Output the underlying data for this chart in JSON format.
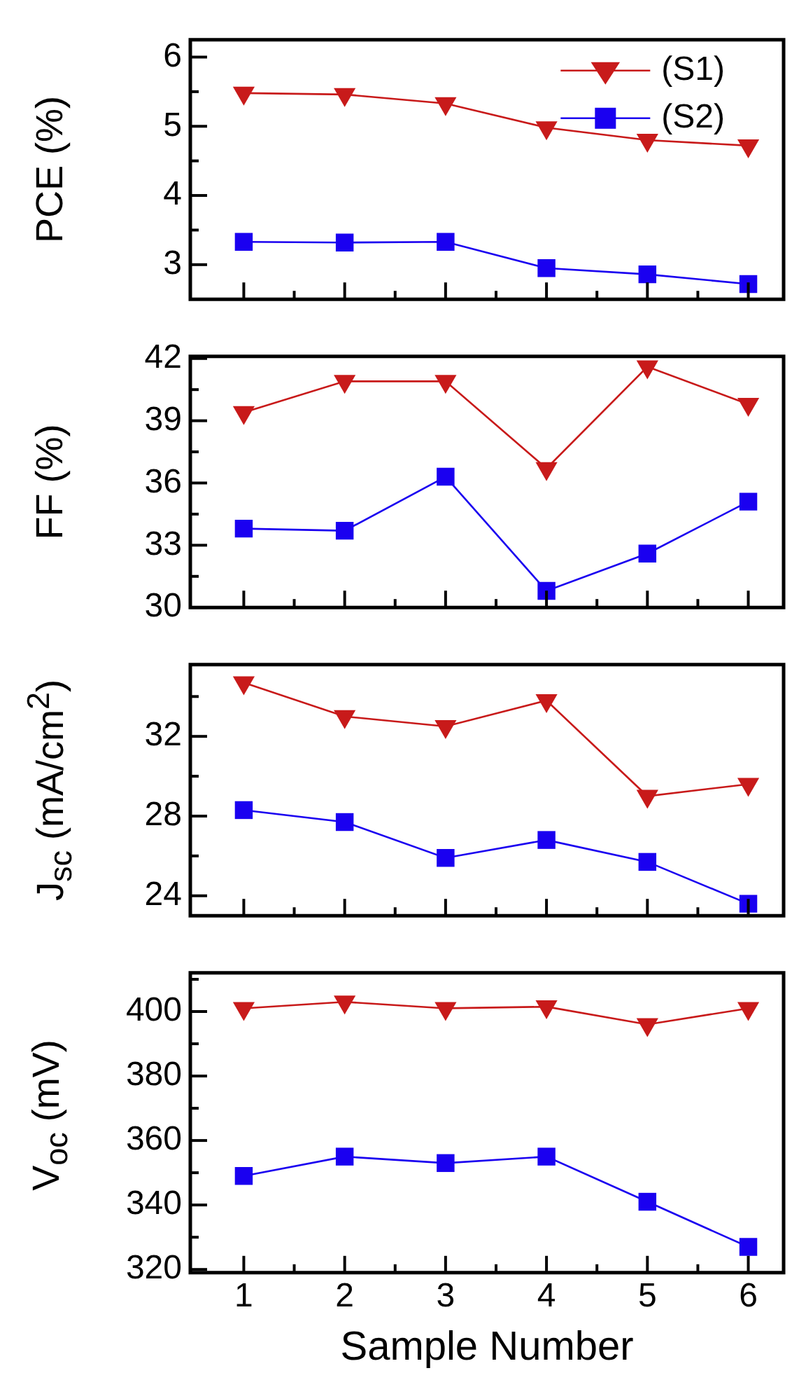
{
  "chart_data": [
    {
      "type": "line",
      "ylabel": "PCE (%)",
      "x": [
        1,
        2,
        3,
        4,
        5,
        6
      ],
      "xlim": [
        0.47,
        6.35
      ],
      "xticks": [
        1,
        {
          "value": 1.5,
          "label": null
        },
        2,
        {
          "value": 2.5,
          "label": null
        },
        3,
        {
          "value": 3.5,
          "label": null
        },
        4,
        {
          "value": 4.5,
          "label": null
        },
        5,
        {
          "value": 5.5,
          "label": null
        },
        6
      ],
      "ylim": [
        2.5,
        6.25
      ],
      "yticks": [
        3,
        {
          "value": 3.5,
          "label": null
        },
        4,
        {
          "value": 4.5,
          "label": null
        },
        5,
        {
          "value": 5.5,
          "label": null
        },
        6
      ],
      "tick_labels": "y",
      "legend": "top right",
      "series": [
        {
          "name": "(S1)",
          "color": "#c81a1a",
          "marker": "triangle",
          "values": [
            5.48,
            5.46,
            5.33,
            4.98,
            4.8,
            4.72
          ]
        },
        {
          "name": "(S2)",
          "color": "#1a00f0",
          "marker": "square",
          "values": [
            3.33,
            3.32,
            3.33,
            2.95,
            2.86,
            2.72
          ]
        }
      ]
    },
    {
      "type": "line",
      "ylabel": "FF (%)",
      "x": [
        1,
        2,
        3,
        4,
        5,
        6
      ],
      "xlim": [
        0.47,
        6.35
      ],
      "xticks": [
        1,
        {
          "value": 1.5,
          "label": null
        },
        2,
        {
          "value": 2.5,
          "label": null
        },
        3,
        {
          "value": 3.5,
          "label": null
        },
        4,
        {
          "value": 4.5,
          "label": null
        },
        5,
        {
          "value": 5.5,
          "label": null
        },
        6
      ],
      "ylim": [
        30,
        42.1
      ],
      "yticks": [
        30,
        {
          "value": 31.5,
          "label": null
        },
        33,
        {
          "value": 34.5,
          "label": null
        },
        36,
        {
          "value": 37.5,
          "label": null
        },
        39,
        {
          "value": 40.5,
          "label": null
        },
        42
      ],
      "tick_labels": "y",
      "series": [
        {
          "color": "#c81a1a",
          "marker": "triangle",
          "values": [
            39.4,
            40.9,
            40.9,
            36.7,
            41.6,
            39.8
          ]
        },
        {
          "color": "#1a00f0",
          "marker": "square",
          "values": [
            33.8,
            33.7,
            36.3,
            30.8,
            32.6,
            35.1
          ]
        }
      ]
    },
    {
      "type": "line",
      "ylabel": "J$_{sc}$ (mA/cm$^{2}$)",
      "x": [
        1,
        2,
        3,
        4,
        5,
        6
      ],
      "xlim": [
        0.47,
        6.35
      ],
      "xticks": [
        1,
        {
          "value": 1.5,
          "label": null
        },
        2,
        {
          "value": 2.5,
          "label": null
        },
        3,
        {
          "value": 3.5,
          "label": null
        },
        4,
        {
          "value": 4.5,
          "label": null
        },
        5,
        {
          "value": 5.5,
          "label": null
        },
        6
      ],
      "ylim": [
        23,
        35.6
      ],
      "yticks": [
        24,
        {
          "value": 26,
          "label": null
        },
        28,
        {
          "value": 30,
          "label": null
        },
        32,
        {
          "value": 34,
          "label": null
        }
      ],
      "tick_labels": "y",
      "series": [
        {
          "color": "#c81a1a",
          "marker": "triangle",
          "values": [
            34.7,
            33.0,
            32.5,
            33.8,
            29.0,
            29.6
          ]
        },
        {
          "color": "#1a00f0",
          "marker": "square",
          "values": [
            28.3,
            27.7,
            25.9,
            26.8,
            25.7,
            23.6
          ]
        }
      ]
    },
    {
      "type": "line",
      "ylabel": "V$_{oc}$ (mV)",
      "xlabel": "Sample Number",
      "x": [
        1,
        2,
        3,
        4,
        5,
        6
      ],
      "xlim": [
        0.47,
        6.35
      ],
      "xticks": [
        1,
        {
          "value": 1.5,
          "label": null
        },
        2,
        {
          "value": 2.5,
          "label": null
        },
        3,
        {
          "value": 3.5,
          "label": null
        },
        4,
        {
          "value": 4.5,
          "label": null
        },
        5,
        {
          "value": 5.5,
          "label": null
        },
        6
      ],
      "ylim": [
        319,
        412
      ],
      "yticks": [
        320,
        {
          "value": 330,
          "label": null
        },
        340,
        {
          "value": 350,
          "label": null
        },
        360,
        {
          "value": 370,
          "label": null
        },
        380,
        {
          "value": 390,
          "label": null
        },
        400,
        {
          "value": 410,
          "label": null
        }
      ],
      "series": [
        {
          "color": "#c81a1a",
          "marker": "triangle",
          "values": [
            401,
            403,
            401,
            401.5,
            396,
            401
          ]
        },
        {
          "color": "#1a00f0",
          "marker": "square",
          "values": [
            349,
            355,
            353,
            355,
            341,
            327
          ]
        }
      ]
    }
  ]
}
